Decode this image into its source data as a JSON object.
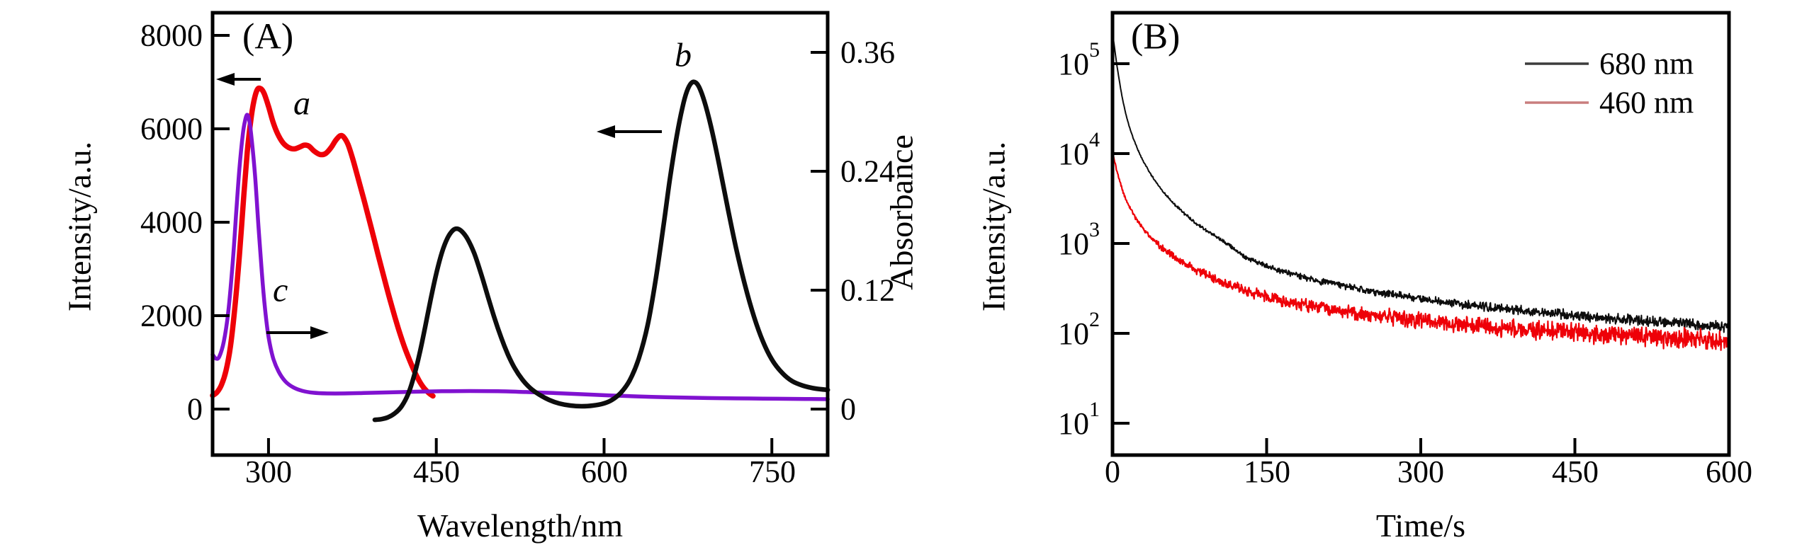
{
  "panelA": {
    "label": "(A)",
    "x_axis": {
      "title": "Wavelength/nm",
      "ticks": [
        "300",
        "450",
        "600",
        "750"
      ]
    },
    "y_left": {
      "title": "Intensity/a.u.",
      "ticks": [
        "8000",
        "6000",
        "4000",
        "2000",
        "0"
      ]
    },
    "y_right": {
      "title": "Absorbance",
      "ticks": [
        "0.36",
        "0.24",
        "0.12",
        "0"
      ]
    },
    "curve_labels": {
      "a": "a",
      "b": "b",
      "c": "c"
    }
  },
  "panelB": {
    "label": "(B)",
    "x_axis": {
      "title": "Time/s",
      "ticks": [
        "0",
        "150",
        "300",
        "450",
        "600"
      ]
    },
    "y_axis": {
      "title": "Intensity/a.u.",
      "ticks": [
        {
          "base": "10",
          "exp": "5"
        },
        {
          "base": "10",
          "exp": "4"
        },
        {
          "base": "10",
          "exp": "3"
        },
        {
          "base": "10",
          "exp": "2"
        },
        {
          "base": "10",
          "exp": "1"
        }
      ]
    },
    "legend": [
      {
        "label": "680 nm",
        "color": "#3c3c3c"
      },
      {
        "label": "460 nm",
        "color": "#c97e7e"
      }
    ]
  },
  "colors": {
    "red": "#ee0008",
    "purple": "#8012d0",
    "black": "#0d0d0d",
    "axis": "#000000",
    "background": "#ffffff"
  },
  "chart_data": [
    {
      "type": "line",
      "panel": "A",
      "xlabel": "Wavelength/nm",
      "ylabel_left": "Intensity/a.u.",
      "ylabel_right": "Absorbance",
      "xlim": [
        250,
        800
      ],
      "ylim_left": [
        0,
        8000
      ],
      "ylim_right": [
        0,
        0.36
      ],
      "x_ticks": [
        300,
        450,
        600,
        750
      ],
      "y_left_ticks": [
        0,
        2000,
        4000,
        6000,
        8000
      ],
      "y_right_ticks": [
        0,
        0.12,
        0.24,
        0.36
      ],
      "grid": false,
      "series": [
        {
          "name": "a",
          "color": "red",
          "axis": "left",
          "width": 7.5,
          "points": [
            [
              250,
              290
            ],
            [
              254,
              360
            ],
            [
              258,
              520
            ],
            [
              262,
              820
            ],
            [
              266,
              1350
            ],
            [
              270,
              2200
            ],
            [
              274,
              3300
            ],
            [
              278,
              4600
            ],
            [
              281,
              5500
            ],
            [
              284,
              6150
            ],
            [
              287,
              6600
            ],
            [
              290,
              6840
            ],
            [
              293,
              6860
            ],
            [
              296,
              6760
            ],
            [
              300,
              6480
            ],
            [
              304,
              6150
            ],
            [
              308,
              5900
            ],
            [
              313,
              5700
            ],
            [
              318,
              5600
            ],
            [
              323,
              5570
            ],
            [
              328,
              5610
            ],
            [
              332,
              5650
            ],
            [
              336,
              5630
            ],
            [
              341,
              5520
            ],
            [
              346,
              5450
            ],
            [
              351,
              5470
            ],
            [
              356,
              5600
            ],
            [
              360,
              5750
            ],
            [
              364,
              5850
            ],
            [
              367,
              5830
            ],
            [
              371,
              5670
            ],
            [
              375,
              5380
            ],
            [
              380,
              4950
            ],
            [
              386,
              4420
            ],
            [
              392,
              3870
            ],
            [
              398,
              3300
            ],
            [
              404,
              2750
            ],
            [
              410,
              2220
            ],
            [
              416,
              1730
            ],
            [
              422,
              1300
            ],
            [
              428,
              940
            ],
            [
              433,
              680
            ],
            [
              438,
              480
            ],
            [
              443,
              350
            ],
            [
              447,
              280
            ]
          ]
        },
        {
          "name": "c",
          "color": "purple",
          "axis": "right",
          "width": 5.5,
          "points": [
            [
              250,
              0.055
            ],
            [
              253,
              0.051
            ],
            [
              256,
              0.053
            ],
            [
              260,
              0.068
            ],
            [
              264,
              0.098
            ],
            [
              268,
              0.148
            ],
            [
              271,
              0.196
            ],
            [
              274,
              0.243
            ],
            [
              277,
              0.277
            ],
            [
              279,
              0.291
            ],
            [
              281,
              0.297
            ],
            [
              283,
              0.29
            ],
            [
              285,
              0.272
            ],
            [
              288,
              0.235
            ],
            [
              291,
              0.185
            ],
            [
              294,
              0.138
            ],
            [
              297,
              0.1
            ],
            [
              300,
              0.073
            ],
            [
              304,
              0.052
            ],
            [
              309,
              0.038
            ],
            [
              315,
              0.028
            ],
            [
              322,
              0.022
            ],
            [
              330,
              0.0185
            ],
            [
              340,
              0.0165
            ],
            [
              352,
              0.0158
            ],
            [
              368,
              0.0158
            ],
            [
              385,
              0.0162
            ],
            [
              405,
              0.0168
            ],
            [
              430,
              0.0175
            ],
            [
              455,
              0.018
            ],
            [
              480,
              0.0182
            ],
            [
              505,
              0.018
            ],
            [
              530,
              0.0172
            ],
            [
              555,
              0.0162
            ],
            [
              580,
              0.015
            ],
            [
              605,
              0.0138
            ],
            [
              630,
              0.0128
            ],
            [
              655,
              0.012
            ],
            [
              680,
              0.0114
            ],
            [
              705,
              0.011
            ],
            [
              730,
              0.0107
            ],
            [
              755,
              0.0104
            ],
            [
              780,
              0.0102
            ],
            [
              800,
              0.01
            ]
          ]
        },
        {
          "name": "b",
          "color": "black",
          "axis": "left",
          "width": 6.5,
          "points": [
            [
              395,
              -230
            ],
            [
              401,
              -215
            ],
            [
              407,
              -175
            ],
            [
              413,
              -90
            ],
            [
              419,
              60
            ],
            [
              425,
              330
            ],
            [
              430,
              700
            ],
            [
              435,
              1180
            ],
            [
              440,
              1750
            ],
            [
              445,
              2350
            ],
            [
              450,
              2900
            ],
            [
              455,
              3350
            ],
            [
              460,
              3660
            ],
            [
              465,
              3830
            ],
            [
              469,
              3860
            ],
            [
              473,
              3800
            ],
            [
              478,
              3640
            ],
            [
              484,
              3330
            ],
            [
              490,
              2900
            ],
            [
              496,
              2420
            ],
            [
              502,
              1950
            ],
            [
              508,
              1530
            ],
            [
              514,
              1170
            ],
            [
              520,
              880
            ],
            [
              527,
              630
            ],
            [
              534,
              450
            ],
            [
              542,
              310
            ],
            [
              551,
              195
            ],
            [
              560,
              120
            ],
            [
              570,
              75
            ],
            [
              580,
              60
            ],
            [
              590,
              75
            ],
            [
              599,
              115
            ],
            [
              607,
              195
            ],
            [
              615,
              350
            ],
            [
              623,
              620
            ],
            [
              631,
              1080
            ],
            [
              639,
              1800
            ],
            [
              646,
              2750
            ],
            [
              653,
              3900
            ],
            [
              659,
              4950
            ],
            [
              665,
              5850
            ],
            [
              670,
              6450
            ],
            [
              674,
              6800
            ],
            [
              678,
              6980
            ],
            [
              682,
              6990
            ],
            [
              686,
              6840
            ],
            [
              691,
              6480
            ],
            [
              697,
              5900
            ],
            [
              704,
              5100
            ],
            [
              711,
              4250
            ],
            [
              718,
              3450
            ],
            [
              726,
              2650
            ],
            [
              734,
              1980
            ],
            [
              742,
              1450
            ],
            [
              750,
              1060
            ],
            [
              759,
              780
            ],
            [
              768,
              600
            ],
            [
              778,
              500
            ],
            [
              789,
              440
            ],
            [
              800,
              410
            ]
          ]
        }
      ],
      "arrows": [
        {
          "for_series": "a",
          "direction": "left",
          "tail": [
            368,
            112
          ],
          "tip": [
            305,
            112
          ]
        },
        {
          "for_series": "b",
          "direction": "left",
          "tail": [
            934,
            186
          ],
          "tip": [
            842,
            186
          ]
        },
        {
          "for_series": "c",
          "direction": "right",
          "tail": [
            376,
            470
          ],
          "tip": [
            464,
            470
          ]
        }
      ]
    },
    {
      "type": "line",
      "panel": "B",
      "xlabel": "Time/s",
      "ylabel": "Intensity/a.u.",
      "xlim": [
        0,
        600
      ],
      "x_ticks": [
        0,
        150,
        300,
        450,
        600
      ],
      "y_scale": "log",
      "ylim": [
        10,
        100000
      ],
      "grid": false,
      "legend_position": "upper right",
      "series": [
        {
          "name": "680 nm",
          "color": "black",
          "noise_k": 0.65,
          "width": 2.0,
          "anchors": [
            [
              0,
              220000
            ],
            [
              2,
              150000
            ],
            [
              4,
              100000
            ],
            [
              6,
              72000
            ],
            [
              8,
              52000
            ],
            [
              10,
              39000
            ],
            [
              13,
              27500
            ],
            [
              16,
              20500
            ],
            [
              20,
              15000
            ],
            [
              25,
              10800
            ],
            [
              30,
              8200
            ],
            [
              36,
              6200
            ],
            [
              43,
              4700
            ],
            [
              50,
              3700
            ],
            [
              60,
              2750
            ],
            [
              70,
              2150
            ],
            [
              82,
              1650
            ],
            [
              95,
              1300
            ],
            [
              110,
              1020
            ],
            [
              130,
              700
            ],
            [
              150,
              560
            ],
            [
              170,
              470
            ],
            [
              195,
              395
            ],
            [
              220,
              345
            ],
            [
              250,
              298
            ],
            [
              280,
              262
            ],
            [
              310,
              234
            ],
            [
              340,
              212
            ],
            [
              370,
              194
            ],
            [
              400,
              178
            ],
            [
              430,
              165
            ],
            [
              460,
              154
            ],
            [
              490,
              145
            ],
            [
              520,
              137
            ],
            [
              550,
              130
            ],
            [
              575,
              124
            ],
            [
              600,
              119
            ]
          ]
        },
        {
          "name": "460 nm",
          "color": "red",
          "noise_k": 1.0,
          "width": 2.2,
          "anchors": [
            [
              0,
              10500
            ],
            [
              2,
              8200
            ],
            [
              4,
              6600
            ],
            [
              6,
              5400
            ],
            [
              8,
              4500
            ],
            [
              10,
              3800
            ],
            [
              13,
              3100
            ],
            [
              16,
              2600
            ],
            [
              20,
              2150
            ],
            [
              25,
              1750
            ],
            [
              30,
              1450
            ],
            [
              36,
              1200
            ],
            [
              43,
              1000
            ],
            [
              50,
              860
            ],
            [
              60,
              710
            ],
            [
              70,
              600
            ],
            [
              82,
              500
            ],
            [
              95,
              425
            ],
            [
              110,
              360
            ],
            [
              130,
              300
            ],
            [
              150,
              258
            ],
            [
              170,
              228
            ],
            [
              195,
              200
            ],
            [
              220,
              180
            ],
            [
              250,
              160
            ],
            [
              280,
              146
            ],
            [
              310,
              135
            ],
            [
              340,
              126
            ],
            [
              370,
              118
            ],
            [
              400,
              111
            ],
            [
              430,
              105
            ],
            [
              460,
              100
            ],
            [
              490,
              96
            ],
            [
              520,
              92
            ],
            [
              550,
              89
            ],
            [
              575,
              86
            ],
            [
              600,
              84
            ]
          ]
        }
      ]
    }
  ]
}
